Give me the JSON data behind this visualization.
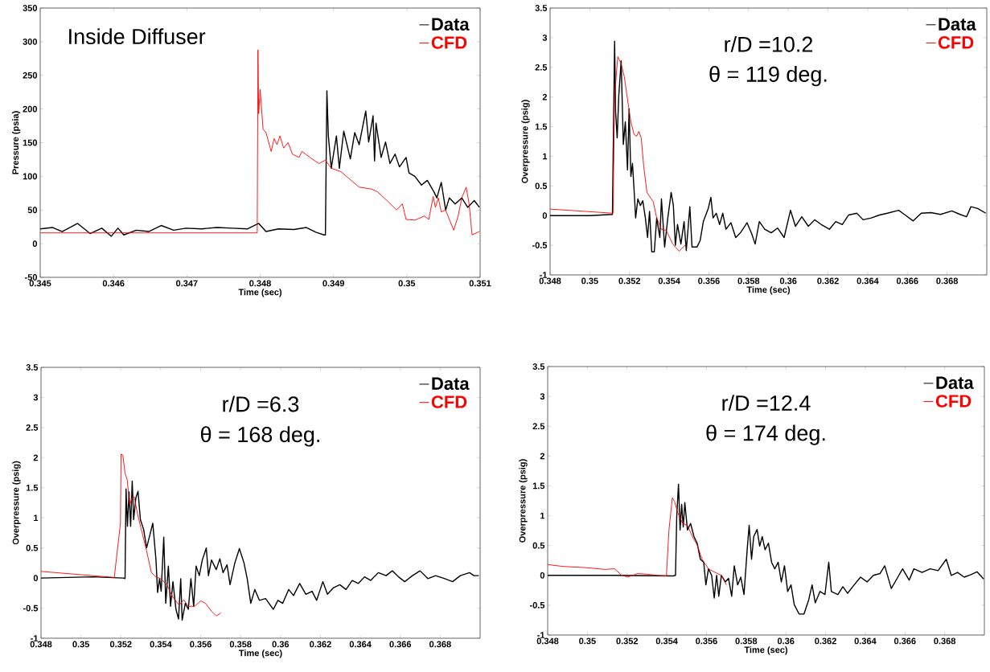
{
  "chart_data": [
    {
      "type": "line",
      "xlabel": "Time (sec)",
      "ylabel": "Pressure (psia)",
      "annotations": [
        "Inside Diffuser"
      ],
      "xlim": [
        0.345,
        0.351
      ],
      "ylim": [
        -50,
        350
      ],
      "xticks": [
        0.345,
        0.346,
        0.347,
        0.348,
        0.349,
        0.35,
        0.351
      ],
      "yticks": [
        -50,
        0,
        50,
        100,
        150,
        200,
        250,
        300,
        350
      ],
      "legend": "top right",
      "series": [
        {
          "name": "Data",
          "color": "#000000",
          "x": [
            0.345,
            0.34517,
            0.3453,
            0.34551,
            0.34568,
            0.34584,
            0.34597,
            0.34606,
            0.34614,
            0.34631,
            0.34648,
            0.34665,
            0.34682,
            0.34699,
            0.3472,
            0.34741,
            0.34762,
            0.34783,
            0.34798,
            0.34808,
            0.34825,
            0.34846,
            0.34863,
            0.34876,
            0.34887,
            0.34889,
            0.34891,
            0.34893,
            0.34897,
            0.34904,
            0.34908,
            0.34914,
            0.34923,
            0.34929,
            0.34935,
            0.34944,
            0.34948,
            0.34954,
            0.34956,
            0.34958,
            0.34965,
            0.34971,
            0.34977,
            0.34984,
            0.3499,
            0.34999,
            0.35003,
            0.35011,
            0.3502,
            0.35028,
            0.35037,
            0.35041,
            0.35047,
            0.35053,
            0.35058,
            0.35066,
            0.35075,
            0.35083,
            0.35092,
            0.35099
          ],
          "values": [
            22,
            24,
            18,
            30,
            15,
            23,
            11,
            23,
            13,
            20,
            18,
            27,
            20,
            23,
            22,
            24,
            23,
            22,
            30,
            18,
            22,
            21,
            24,
            17,
            13,
            13,
            227,
            160,
            112,
            160,
            112,
            167,
            126,
            165,
            147,
            197,
            151,
            190,
            123,
            179,
            128,
            151,
            119,
            133,
            114,
            128,
            105,
            100,
            87,
            94,
            77,
            68,
            91,
            50,
            68,
            59,
            68,
            54,
            64,
            54
          ]
        },
        {
          "name": "CFD",
          "color": "#ff0000",
          "x": [
            0.345,
            0.34796,
            0.34797,
            0.34798,
            0.348,
            0.34804,
            0.34808,
            0.34815,
            0.34819,
            0.34823,
            0.34827,
            0.34832,
            0.34838,
            0.34844,
            0.34853,
            0.34857,
            0.34868,
            0.3488,
            0.34889,
            0.34897,
            0.3491,
            0.34922,
            0.34935,
            0.34952,
            0.3496,
            0.34973,
            0.34986,
            0.34994,
            0.34999,
            0.35011,
            0.35024,
            0.3503,
            0.35036,
            0.35039,
            0.35043,
            0.35047,
            0.35053,
            0.35058,
            0.35064,
            0.3507,
            0.35075,
            0.35081,
            0.35085,
            0.35089,
            0.35099
          ],
          "values": [
            16,
            16,
            288,
            193,
            229,
            170,
            165,
            137,
            156,
            147,
            160,
            142,
            150,
            133,
            128,
            137,
            128,
            119,
            124,
            112,
            107,
            96,
            84,
            81,
            77,
            64,
            50,
            59,
            36,
            35,
            41,
            36,
            70,
            54,
            68,
            47,
            50,
            36,
            20,
            41,
            68,
            84,
            59,
            13,
            18
          ]
        }
      ]
    },
    {
      "type": "line",
      "xlabel": "Time (sec)",
      "ylabel": "Overpressure (psig)",
      "annotations": [
        "r/D =10.2",
        "θ = 119 deg."
      ],
      "xlim": [
        0.348,
        0.37
      ],
      "ylim": [
        -1,
        3.5
      ],
      "xticks": [
        0.348,
        0.35,
        0.352,
        0.354,
        0.356,
        0.358,
        0.36,
        0.362,
        0.364,
        0.366,
        0.368
      ],
      "yticks": [
        -1,
        -0.5,
        0,
        0.5,
        1,
        1.5,
        2,
        2.5,
        3,
        3.5
      ],
      "legend": "top right",
      "series": [
        {
          "name": "Data",
          "color": "#000000",
          "x": [
            0.348,
            0.35,
            0.35114,
            0.35125,
            0.3513,
            0.35138,
            0.35146,
            0.35158,
            0.35169,
            0.35179,
            0.3519,
            0.35198,
            0.35207,
            0.35215,
            0.35223,
            0.35231,
            0.35242,
            0.35255,
            0.35267,
            0.3528,
            0.35291,
            0.35301,
            0.35312,
            0.35325,
            0.35337,
            0.35353,
            0.35361,
            0.35377,
            0.35393,
            0.3541,
            0.35421,
            0.35431,
            0.35442,
            0.35459,
            0.35475,
            0.35486,
            0.35504,
            0.35515,
            0.3554,
            0.35556,
            0.35572,
            0.35597,
            0.3561,
            0.35621,
            0.35637,
            0.35654,
            0.3567,
            0.35686,
            0.35711,
            0.35735,
            0.35759,
            0.35792,
            0.35816,
            0.35833,
            0.35854,
            0.35881,
            0.35914,
            0.35946,
            0.35979,
            0.36011,
            0.36036,
            0.36068,
            0.36101,
            0.36133,
            0.36166,
            0.36207,
            0.36239,
            0.36272,
            0.36304,
            0.36345,
            0.36377,
            0.36418,
            0.36459,
            0.36499,
            0.36556,
            0.36589,
            0.36629,
            0.3667,
            0.36719,
            0.36767,
            0.36824,
            0.36865,
            0.36898,
            0.3692,
            0.36954,
            0.36995
          ],
          "values": [
            0,
            0,
            0.02,
            2.94,
            1.75,
            1.31,
            2.02,
            2.61,
            1.2,
            1.58,
            0.77,
            1.8,
            0.66,
            0.88,
            0.44,
            -0.04,
            0.28,
            0.17,
            0.25,
            -0.04,
            -0.37,
            0.07,
            -0.61,
            -0.61,
            -0.04,
            -0.37,
            0.28,
            -0.53,
            -0.04,
            0.39,
            0.17,
            -0.5,
            -0.15,
            -0.48,
            -0.1,
            -0.59,
            0.15,
            -0.53,
            -0.53,
            -0.42,
            -0.1,
            0.12,
            0.31,
            -0.04,
            0.04,
            -0.15,
            0.04,
            -0.23,
            -0.12,
            -0.37,
            -0.29,
            -0.12,
            -0.31,
            -0.48,
            -0.1,
            -0.23,
            -0.29,
            -0.21,
            -0.37,
            0.09,
            -0.18,
            -0.02,
            -0.18,
            -0.07,
            -0.15,
            -0.23,
            -0.1,
            -0.15,
            0.01,
            0.04,
            -0.07,
            -0.04,
            0.01,
            0.04,
            0.09,
            0.01,
            -0.09,
            0.04,
            0.05,
            0.02,
            0.08,
            0.02,
            -0.02,
            0.15,
            0.12,
            0.04
          ]
        },
        {
          "name": "CFD",
          "color": "#ff0000",
          "x": [
            0.348,
            0.35117,
            0.35125,
            0.35141,
            0.35158,
            0.35174,
            0.3519,
            0.35207,
            0.35223,
            0.35236,
            0.35247,
            0.35259,
            0.35272,
            0.35288,
            0.35304,
            0.3532,
            0.35337,
            0.35361,
            0.35385,
            0.35418,
            0.3545,
            0.3547,
            0.35483
          ],
          "values": [
            0.11,
            0.04,
            2.02,
            2.68,
            2.56,
            2.34,
            1.96,
            1.58,
            1.37,
            1.34,
            1.42,
            1.31,
            0.82,
            0.39,
            0.31,
            0.23,
            -0.04,
            -0.23,
            -0.25,
            -0.48,
            -0.6,
            -0.53,
            -0.49
          ]
        }
      ]
    },
    {
      "type": "line",
      "xlabel": "Time (sec)",
      "ylabel": "Overpressure (psig)",
      "annotations": [
        "r/D =6.3",
        "θ = 168 deg."
      ],
      "xlim": [
        0.348,
        0.37
      ],
      "ylim": [
        -1,
        3.5
      ],
      "xticks": [
        0.348,
        0.35,
        0.352,
        0.354,
        0.356,
        0.358,
        0.36,
        0.362,
        0.364,
        0.366,
        0.368
      ],
      "yticks": [
        -1,
        -0.5,
        0,
        0.5,
        1,
        1.5,
        2,
        2.5,
        3,
        3.5
      ],
      "legend": "top right",
      "series": [
        {
          "name": "Data",
          "color": "#000000",
          "x": [
            0.348,
            0.35059,
            0.35213,
            0.35221,
            0.35226,
            0.35233,
            0.35241,
            0.35249,
            0.35257,
            0.35264,
            0.35275,
            0.35286,
            0.35298,
            0.35314,
            0.35329,
            0.35345,
            0.3536,
            0.35376,
            0.35384,
            0.35394,
            0.35402,
            0.35415,
            0.35425,
            0.35438,
            0.35449,
            0.35461,
            0.35476,
            0.35489,
            0.355,
            0.35507,
            0.35523,
            0.35538,
            0.35551,
            0.35565,
            0.35577,
            0.35593,
            0.35608,
            0.35628,
            0.35639,
            0.35654,
            0.35678,
            0.35696,
            0.35712,
            0.35732,
            0.35747,
            0.35771,
            0.35794,
            0.35817,
            0.35833,
            0.35851,
            0.35871,
            0.35894,
            0.35925,
            0.35964,
            0.35987,
            0.36011,
            0.36041,
            0.36065,
            0.36096,
            0.36127,
            0.36158,
            0.36181,
            0.36212,
            0.36235,
            0.36266,
            0.36297,
            0.36328,
            0.36359,
            0.3639,
            0.36421,
            0.36452,
            0.3649,
            0.36529,
            0.3656,
            0.36591,
            0.36622,
            0.36661,
            0.36699,
            0.36738,
            0.36777,
            0.36823,
            0.36862,
            0.36901,
            0.36947,
            0.36969,
            0.36994
          ],
          "values": [
            0,
            0.02,
            0,
            -0.01,
            1.48,
            0.86,
            1.43,
            0.86,
            1.61,
            0.97,
            1.33,
            1.44,
            0.97,
            0.81,
            0.5,
            0.71,
            0.91,
            0.3,
            -0.24,
            -0.01,
            -0.22,
            0.68,
            -0.42,
            0.2,
            -0.47,
            -0.06,
            -0.52,
            -0.68,
            -0.01,
            -0.7,
            -0.42,
            -0.52,
            -0.01,
            -0.47,
            0.2,
            0.04,
            0.3,
            0.5,
            0.04,
            0.3,
            0.14,
            0.32,
            0.09,
            0.22,
            -0.11,
            0.25,
            0.49,
            0.25,
            -0.01,
            -0.42,
            -0.19,
            -0.37,
            -0.34,
            -0.52,
            -0.37,
            -0.42,
            -0.19,
            -0.29,
            -0.09,
            -0.27,
            -0.22,
            -0.37,
            -0.06,
            -0.27,
            -0.16,
            -0.11,
            -0.19,
            -0.04,
            -0.09,
            0.02,
            -0.04,
            0.09,
            0.04,
            0.12,
            0.02,
            -0.06,
            0.04,
            0.12,
            -0.01,
            0.04,
            -0.01,
            -0.06,
            0.04,
            0.09,
            0.04,
            0.04
          ]
        },
        {
          "name": "CFD",
          "color": "#ff0000",
          "x": [
            0.348,
            0.35167,
            0.35198,
            0.35201,
            0.3521,
            0.35221,
            0.35232,
            0.35244,
            0.35257,
            0.35267,
            0.35283,
            0.35306,
            0.35329,
            0.35353,
            0.35376,
            0.35399,
            0.3543,
            0.35461,
            0.35492,
            0.35515,
            0.35538,
            0.35569,
            0.356,
            0.35624,
            0.35654,
            0.35678,
            0.35701
          ],
          "values": [
            0.11,
            0.01,
            0.91,
            2.06,
            2.04,
            1.74,
            1.63,
            1.22,
            1.33,
            1.35,
            1.07,
            0.76,
            0.45,
            0.09,
            0.02,
            -0.01,
            -0.11,
            -0.32,
            -0.45,
            -0.36,
            -0.47,
            -0.47,
            -0.38,
            -0.42,
            -0.55,
            -0.63,
            -0.58
          ]
        }
      ]
    },
    {
      "type": "line",
      "xlabel": "Time (sec)",
      "ylabel": "Overpressure (psig)",
      "annotations": [
        "r/D =12.4",
        "θ = 174 deg."
      ],
      "xlim": [
        0.348,
        0.37
      ],
      "ylim": [
        -1,
        3.5
      ],
      "xticks": [
        0.348,
        0.35,
        0.352,
        0.354,
        0.356,
        0.358,
        0.36,
        0.362,
        0.364,
        0.366,
        0.368
      ],
      "yticks": [
        -1,
        -0.5,
        0,
        0.5,
        1,
        1.5,
        2,
        2.5,
        3,
        3.5
      ],
      "legend": "top right",
      "series": [
        {
          "name": "Data",
          "color": "#000000",
          "x": [
            0.348,
            0.35121,
            0.35431,
            0.35444,
            0.3545,
            0.35459,
            0.35467,
            0.35475,
            0.35483,
            0.35491,
            0.35504,
            0.3552,
            0.35537,
            0.35553,
            0.35569,
            0.35586,
            0.35597,
            0.3561,
            0.35626,
            0.35639,
            0.35651,
            0.35662,
            0.35675,
            0.35695,
            0.35711,
            0.35727,
            0.3574,
            0.35757,
            0.35773,
            0.35789,
            0.35805,
            0.35815,
            0.35827,
            0.35838,
            0.35855,
            0.35868,
            0.35881,
            0.35895,
            0.35912,
            0.35928,
            0.35944,
            0.35961,
            0.35977,
            0.35993,
            0.36009,
            0.36026,
            0.36042,
            0.36067,
            0.36091,
            0.36115,
            0.36132,
            0.36148,
            0.36172,
            0.36197,
            0.36216,
            0.36229,
            0.36262,
            0.36287,
            0.36311,
            0.36344,
            0.36376,
            0.36409,
            0.36441,
            0.36474,
            0.36498,
            0.36531,
            0.36564,
            0.36588,
            0.36621,
            0.36645,
            0.36686,
            0.36727,
            0.36767,
            0.36808,
            0.36833,
            0.36865,
            0.36898,
            0.3693,
            0.36963,
            0.36996
          ],
          "values": [
            0,
            0,
            -0.01,
            0,
            0.97,
            1.53,
            0.76,
            1.19,
            0.81,
            1.22,
            0.76,
            0.87,
            0.65,
            0.54,
            0.27,
            0.22,
            -0.16,
            0.11,
            0,
            -0.38,
            0,
            -0.35,
            0,
            -0.11,
            -0.05,
            -0.35,
            0.16,
            -0.16,
            -0.03,
            -0.32,
            0.43,
            0.84,
            0.27,
            0.65,
            0.77,
            0.49,
            0.65,
            0.43,
            0.54,
            0.22,
            0.11,
            0.22,
            -0.11,
            0.16,
            -0.27,
            -0.16,
            -0.49,
            -0.65,
            -0.65,
            -0.41,
            -0.16,
            -0.46,
            -0.27,
            -0.32,
            0.22,
            -0.27,
            -0.32,
            -0.19,
            -0.3,
            -0.16,
            -0.03,
            -0.11,
            0,
            0.03,
            0.16,
            -0.22,
            -0.03,
            0.11,
            -0.08,
            0.11,
            0.05,
            0.11,
            0.08,
            0.27,
            0,
            0.05,
            -0.03,
            0.01,
            0.06,
            -0.06
          ]
        },
        {
          "name": "CFD",
          "color": "#ff0000",
          "x": [
            0.348,
            0.34877,
            0.34991,
            0.35089,
            0.35137,
            0.3517,
            0.35203,
            0.35252,
            0.35301,
            0.35349,
            0.35398,
            0.35411,
            0.35428,
            0.35439,
            0.35455,
            0.3548,
            0.35504,
            0.35529,
            0.35553,
            0.35578,
            0.3561,
            0.35643,
            0.35675,
            0.357
          ],
          "values": [
            0.18,
            0.15,
            0.13,
            0.1,
            0.11,
            0.01,
            -0.03,
            0.03,
            0.02,
            0,
            -0.01,
            0.76,
            1.3,
            1.24,
            1.05,
            0.87,
            0.84,
            0.65,
            0.51,
            0.27,
            0.11,
            0.05,
            0,
            -0.16
          ]
        }
      ]
    }
  ]
}
